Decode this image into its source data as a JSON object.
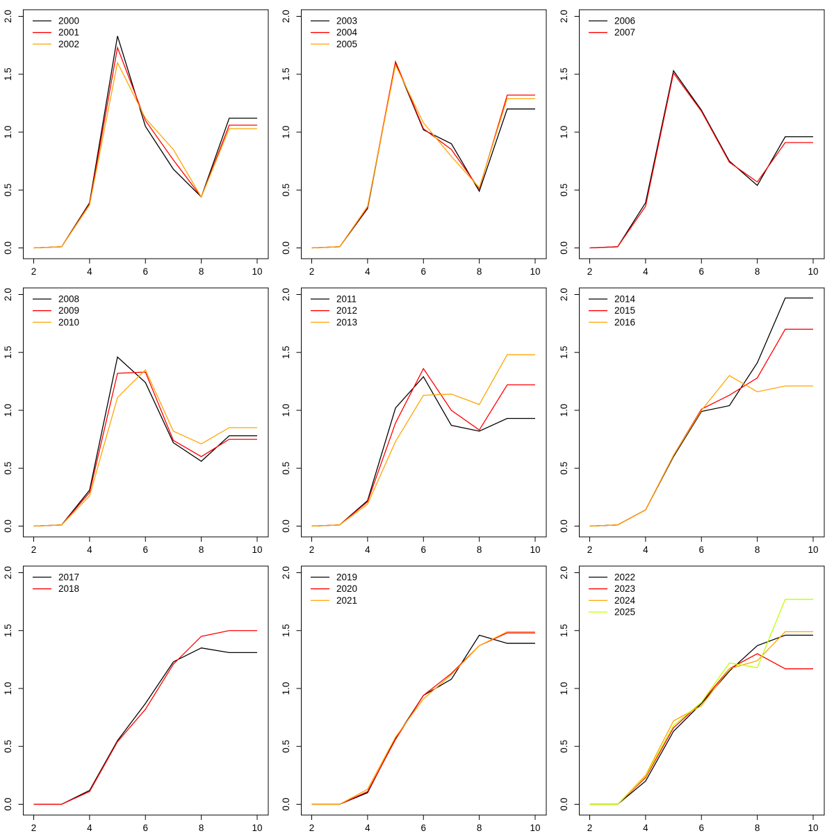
{
  "figure": {
    "background": "#ffffff",
    "layout": "3x3-grid-of-line-charts",
    "axis_color": "#000000"
  },
  "chart_data": [
    {
      "type": "line",
      "x": [
        2,
        3,
        4,
        5,
        6,
        7,
        8,
        9,
        10
      ],
      "xlim": [
        2,
        10
      ],
      "ylim": [
        0,
        2
      ],
      "x_tick_labels": [
        "2",
        "4",
        "6",
        "8",
        "10"
      ],
      "x_tick_values": [
        2,
        4,
        6,
        8,
        10
      ],
      "y_tick_labels": [
        "0.0",
        "0.5",
        "1.0",
        "1.5",
        "2.0"
      ],
      "y_tick_values": [
        0,
        0.5,
        1,
        1.5,
        2
      ],
      "grid": false,
      "legend_position": "top-left",
      "series": [
        {
          "name": "2000",
          "color": "#000000",
          "values": [
            0.0,
            0.01,
            0.39,
            1.83,
            1.05,
            0.68,
            0.44,
            1.12,
            1.12
          ]
        },
        {
          "name": "2001",
          "color": "#FF0000",
          "values": [
            0.0,
            0.01,
            0.38,
            1.73,
            1.1,
            0.76,
            0.44,
            1.06,
            1.06
          ]
        },
        {
          "name": "2002",
          "color": "#FFA500",
          "values": [
            0.0,
            0.01,
            0.37,
            1.6,
            1.12,
            0.85,
            0.44,
            1.03,
            1.03
          ]
        }
      ]
    },
    {
      "type": "line",
      "x": [
        2,
        3,
        4,
        5,
        6,
        7,
        8,
        9,
        10
      ],
      "xlim": [
        2,
        10
      ],
      "ylim": [
        0,
        2
      ],
      "x_tick_labels": [
        "2",
        "4",
        "6",
        "8",
        "10"
      ],
      "x_tick_values": [
        2,
        4,
        6,
        8,
        10
      ],
      "y_tick_labels": [
        "0.0",
        "0.5",
        "1.0",
        "1.5",
        "2.0"
      ],
      "y_tick_values": [
        0,
        0.5,
        1,
        1.5,
        2
      ],
      "grid": false,
      "legend_position": "top-left",
      "series": [
        {
          "name": "2003",
          "color": "#000000",
          "values": [
            0.0,
            0.01,
            0.34,
            1.6,
            1.02,
            0.9,
            0.49,
            1.2,
            1.2
          ]
        },
        {
          "name": "2004",
          "color": "#FF0000",
          "values": [
            0.0,
            0.01,
            0.35,
            1.61,
            1.03,
            0.85,
            0.51,
            1.32,
            1.32
          ]
        },
        {
          "name": "2005",
          "color": "#FFA500",
          "values": [
            0.0,
            0.01,
            0.36,
            1.58,
            1.08,
            0.79,
            0.52,
            1.29,
            1.29
          ]
        }
      ]
    },
    {
      "type": "line",
      "x": [
        2,
        3,
        4,
        5,
        6,
        7,
        8,
        9,
        10
      ],
      "xlim": [
        2,
        10
      ],
      "ylim": [
        0,
        2
      ],
      "x_tick_labels": [
        "2",
        "4",
        "6",
        "8",
        "10"
      ],
      "x_tick_values": [
        2,
        4,
        6,
        8,
        10
      ],
      "y_tick_labels": [
        "0.0",
        "0.5",
        "1.0",
        "1.5",
        "2.0"
      ],
      "y_tick_values": [
        0,
        0.5,
        1,
        1.5,
        2
      ],
      "grid": false,
      "legend_position": "top-left",
      "series": [
        {
          "name": "2006",
          "color": "#000000",
          "values": [
            0.0,
            0.01,
            0.39,
            1.53,
            1.19,
            0.75,
            0.54,
            0.96,
            0.96
          ]
        },
        {
          "name": "2007",
          "color": "#FF0000",
          "values": [
            0.0,
            0.01,
            0.36,
            1.51,
            1.18,
            0.74,
            0.57,
            0.91,
            0.91
          ]
        }
      ]
    },
    {
      "type": "line",
      "x": [
        2,
        3,
        4,
        5,
        6,
        7,
        8,
        9,
        10
      ],
      "xlim": [
        2,
        10
      ],
      "ylim": [
        0,
        2
      ],
      "x_tick_labels": [
        "2",
        "4",
        "6",
        "8",
        "10"
      ],
      "x_tick_values": [
        2,
        4,
        6,
        8,
        10
      ],
      "y_tick_labels": [
        "0.0",
        "0.5",
        "1.0",
        "1.5",
        "2.0"
      ],
      "y_tick_values": [
        0,
        0.5,
        1,
        1.5,
        2
      ],
      "grid": false,
      "legend_position": "top-left",
      "series": [
        {
          "name": "2008",
          "color": "#000000",
          "values": [
            0.0,
            0.01,
            0.31,
            1.46,
            1.24,
            0.72,
            0.56,
            0.78,
            0.78
          ]
        },
        {
          "name": "2009",
          "color": "#FF0000",
          "values": [
            0.0,
            0.01,
            0.29,
            1.32,
            1.33,
            0.74,
            0.6,
            0.75,
            0.75
          ]
        },
        {
          "name": "2010",
          "color": "#FFA500",
          "values": [
            0.0,
            0.01,
            0.26,
            1.11,
            1.35,
            0.82,
            0.71,
            0.85,
            0.85
          ]
        }
      ]
    },
    {
      "type": "line",
      "x": [
        2,
        3,
        4,
        5,
        6,
        7,
        8,
        9,
        10
      ],
      "xlim": [
        2,
        10
      ],
      "ylim": [
        0,
        2
      ],
      "x_tick_labels": [
        "2",
        "4",
        "6",
        "8",
        "10"
      ],
      "x_tick_values": [
        2,
        4,
        6,
        8,
        10
      ],
      "y_tick_labels": [
        "0.0",
        "0.5",
        "1.0",
        "1.5",
        "2.0"
      ],
      "y_tick_values": [
        0,
        0.5,
        1,
        1.5,
        2
      ],
      "grid": false,
      "legend_position": "top-left",
      "series": [
        {
          "name": "2011",
          "color": "#000000",
          "values": [
            0.0,
            0.01,
            0.22,
            1.02,
            1.29,
            0.87,
            0.82,
            0.93,
            0.93
          ]
        },
        {
          "name": "2012",
          "color": "#FF0000",
          "values": [
            0.0,
            0.01,
            0.21,
            0.89,
            1.36,
            1.0,
            0.83,
            1.22,
            1.22
          ]
        },
        {
          "name": "2013",
          "color": "#FFA500",
          "values": [
            0.0,
            0.01,
            0.19,
            0.73,
            1.13,
            1.14,
            1.05,
            1.48,
            1.48
          ]
        }
      ]
    },
    {
      "type": "line",
      "x": [
        2,
        3,
        4,
        5,
        6,
        7,
        8,
        9,
        10
      ],
      "xlim": [
        2,
        10
      ],
      "ylim": [
        0,
        2
      ],
      "x_tick_labels": [
        "2",
        "4",
        "6",
        "8",
        "10"
      ],
      "x_tick_values": [
        2,
        4,
        6,
        8,
        10
      ],
      "y_tick_labels": [
        "0.0",
        "0.5",
        "1.0",
        "1.5",
        "2.0"
      ],
      "y_tick_values": [
        0,
        0.5,
        1,
        1.5,
        2
      ],
      "grid": false,
      "legend_position": "top-left",
      "series": [
        {
          "name": "2014",
          "color": "#000000",
          "values": [
            0.0,
            0.01,
            0.14,
            0.6,
            0.99,
            1.04,
            1.41,
            1.97,
            1.97
          ]
        },
        {
          "name": "2015",
          "color": "#FF0000",
          "values": [
            0.0,
            0.01,
            0.14,
            0.61,
            1.01,
            1.13,
            1.28,
            1.7,
            1.7
          ]
        },
        {
          "name": "2016",
          "color": "#FFA500",
          "values": [
            0.0,
            0.01,
            0.14,
            0.61,
            1.0,
            1.3,
            1.16,
            1.21,
            1.21
          ]
        }
      ]
    },
    {
      "type": "line",
      "x": [
        2,
        3,
        4,
        5,
        6,
        7,
        8,
        9,
        10
      ],
      "xlim": [
        2,
        10
      ],
      "ylim": [
        0,
        2
      ],
      "x_tick_labels": [
        "2",
        "4",
        "6",
        "8",
        "10"
      ],
      "x_tick_values": [
        2,
        4,
        6,
        8,
        10
      ],
      "y_tick_labels": [
        "0.0",
        "0.5",
        "1.0",
        "1.5",
        "2.0"
      ],
      "y_tick_values": [
        0,
        0.5,
        1,
        1.5,
        2
      ],
      "grid": false,
      "legend_position": "top-left",
      "series": [
        {
          "name": "2017",
          "color": "#000000",
          "values": [
            0.0,
            0.0,
            0.12,
            0.55,
            0.87,
            1.23,
            1.35,
            1.31,
            1.31
          ]
        },
        {
          "name": "2018",
          "color": "#FF0000",
          "values": [
            0.0,
            0.0,
            0.11,
            0.54,
            0.82,
            1.21,
            1.45,
            1.5,
            1.5
          ]
        }
      ]
    },
    {
      "type": "line",
      "x": [
        2,
        3,
        4,
        5,
        6,
        7,
        8,
        9,
        10
      ],
      "xlim": [
        2,
        10
      ],
      "ylim": [
        0,
        2
      ],
      "x_tick_labels": [
        "2",
        "4",
        "6",
        "8",
        "10"
      ],
      "x_tick_values": [
        2,
        4,
        6,
        8,
        10
      ],
      "y_tick_labels": [
        "0.0",
        "0.5",
        "1.0",
        "1.5",
        "2.0"
      ],
      "y_tick_values": [
        0,
        0.5,
        1,
        1.5,
        2
      ],
      "grid": false,
      "legend_position": "top-left",
      "series": [
        {
          "name": "2019",
          "color": "#000000",
          "values": [
            0.0,
            0.0,
            0.1,
            0.57,
            0.94,
            1.08,
            1.46,
            1.39,
            1.39
          ]
        },
        {
          "name": "2020",
          "color": "#FF0000",
          "values": [
            0.0,
            0.0,
            0.11,
            0.56,
            0.94,
            1.13,
            1.37,
            1.48,
            1.48
          ]
        },
        {
          "name": "2021",
          "color": "#FFA500",
          "values": [
            0.0,
            0.0,
            0.13,
            0.58,
            0.91,
            1.12,
            1.37,
            1.49,
            1.49
          ]
        }
      ]
    },
    {
      "type": "line",
      "x": [
        2,
        3,
        4,
        5,
        6,
        7,
        8,
        9,
        10
      ],
      "xlim": [
        2,
        10
      ],
      "ylim": [
        0,
        2
      ],
      "x_tick_labels": [
        "2",
        "4",
        "6",
        "8",
        "10"
      ],
      "x_tick_values": [
        2,
        4,
        6,
        8,
        10
      ],
      "y_tick_labels": [
        "0.0",
        "0.5",
        "1.0",
        "1.5",
        "2.0"
      ],
      "y_tick_values": [
        0,
        0.5,
        1,
        1.5,
        2
      ],
      "grid": false,
      "legend_position": "top-left",
      "series": [
        {
          "name": "2022",
          "color": "#000000",
          "values": [
            0.0,
            0.0,
            0.2,
            0.63,
            0.87,
            1.15,
            1.37,
            1.46,
            1.46
          ]
        },
        {
          "name": "2023",
          "color": "#FF0000",
          "values": [
            0.0,
            0.0,
            0.23,
            0.66,
            0.88,
            1.17,
            1.3,
            1.17,
            1.17
          ]
        },
        {
          "name": "2024",
          "color": "#FFA500",
          "values": [
            0.0,
            0.0,
            0.25,
            0.72,
            0.85,
            1.17,
            1.24,
            1.49,
            1.49
          ]
        },
        {
          "name": "2025",
          "color": "#BFFF00",
          "values": [
            0.0,
            0.0,
            0.24,
            0.68,
            0.88,
            1.22,
            1.18,
            1.77,
            1.77
          ]
        }
      ]
    }
  ]
}
